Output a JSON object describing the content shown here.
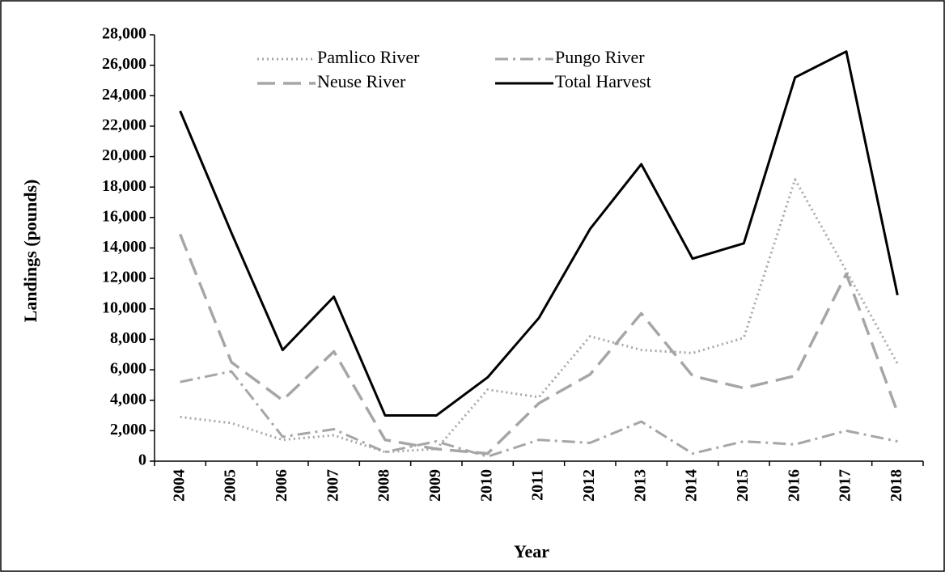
{
  "chart_data": {
    "type": "line",
    "x_label": "Year",
    "y_label": "Landings (pounds)",
    "categories": [
      "2004",
      "2005",
      "2006",
      "2007",
      "2008",
      "2009",
      "2010",
      "2011",
      "2012",
      "2013",
      "2014",
      "2015",
      "2016",
      "2017",
      "2018"
    ],
    "series": [
      {
        "name": "Pamlico River",
        "color": "#a6a6a6",
        "style": "dotted",
        "values": [
          2900,
          2500,
          1400,
          1700,
          600,
          800,
          4700,
          4200,
          8200,
          7300,
          7100,
          8100,
          18500,
          12500,
          6400
        ]
      },
      {
        "name": "Pungo River",
        "color": "#a6a6a6",
        "style": "dashdot",
        "values": [
          5200,
          5900,
          1600,
          2100,
          600,
          1300,
          300,
          1400,
          1200,
          2600,
          500,
          1300,
          1100,
          2000,
          1300
        ]
      },
      {
        "name": "Neuse River",
        "color": "#a6a6a6",
        "style": "dashed",
        "values": [
          14900,
          6500,
          4000,
          7200,
          1400,
          800,
          500,
          3800,
          5700,
          9700,
          5600,
          4800,
          5600,
          12300,
          3200
        ]
      },
      {
        "name": "Total Harvest",
        "color": "#000000",
        "style": "solid",
        "values": [
          23000,
          15000,
          7300,
          10800,
          3000,
          3000,
          5500,
          9400,
          15250,
          19500,
          13300,
          14300,
          25200,
          26900,
          10900
        ]
      }
    ],
    "ylim": [
      0,
      28000
    ],
    "yticks": [
      0,
      {
        "value": 2000,
        "label": "2,000"
      },
      {
        "value": 4000,
        "label": "4,000"
      },
      {
        "value": 6000,
        "label": "6,000"
      },
      {
        "value": 8000,
        "label": "8,000"
      },
      {
        "value": 10000,
        "label": "10,000"
      },
      {
        "value": 12000,
        "label": "12,000"
      },
      {
        "value": 14000,
        "label": "14,000"
      },
      {
        "value": 16000,
        "label": "16,000"
      },
      {
        "value": 18000,
        "label": "18,000"
      },
      {
        "value": 20000,
        "label": "20,000"
      },
      {
        "value": 22000,
        "label": "22,000"
      },
      {
        "value": 24000,
        "label": "24,000"
      },
      {
        "value": 26000,
        "label": "26,000"
      },
      {
        "value": 28000,
        "label": "28,000"
      }
    ],
    "grid": false
  }
}
